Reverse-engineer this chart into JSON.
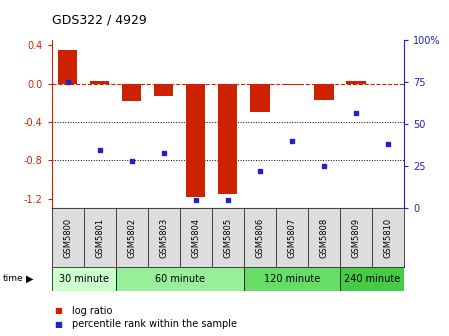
{
  "title": "GDS322 / 4929",
  "samples": [
    "GSM5800",
    "GSM5801",
    "GSM5802",
    "GSM5803",
    "GSM5804",
    "GSM5805",
    "GSM5806",
    "GSM5807",
    "GSM5808",
    "GSM5809",
    "GSM5810"
  ],
  "log_ratio": [
    0.35,
    0.03,
    -0.18,
    -0.13,
    -1.18,
    -1.15,
    -0.3,
    -0.02,
    -0.17,
    0.03,
    -0.01
  ],
  "percentile_rank": [
    75,
    35,
    28,
    33,
    5,
    5,
    22,
    40,
    25,
    57,
    38
  ],
  "ylim_left": [
    -1.3,
    0.45
  ],
  "ylim_right": [
    0,
    100
  ],
  "bar_color": "#cc2200",
  "dot_color": "#2222cc",
  "time_group_spans": [
    {
      "label": "30 minute",
      "cols": [
        0,
        1
      ],
      "color": "#ccffcc"
    },
    {
      "label": "60 minute",
      "cols": [
        2,
        3,
        4,
        5
      ],
      "color": "#99ee99"
    },
    {
      "label": "120 minute",
      "cols": [
        6,
        7,
        8
      ],
      "color": "#66dd66"
    },
    {
      "label": "240 minute",
      "cols": [
        9,
        10
      ],
      "color": "#44cc44"
    }
  ],
  "legend_log_ratio": "log ratio",
  "legend_percentile": "percentile rank within the sample",
  "yticks_left": [
    0.4,
    0.0,
    -0.4,
    -0.8,
    -1.2
  ],
  "yticks_right": [
    100,
    75,
    50,
    25,
    0
  ],
  "ytick_labels_right": [
    "100%",
    "75",
    "50",
    "25",
    "0"
  ],
  "bar_width": 0.6
}
